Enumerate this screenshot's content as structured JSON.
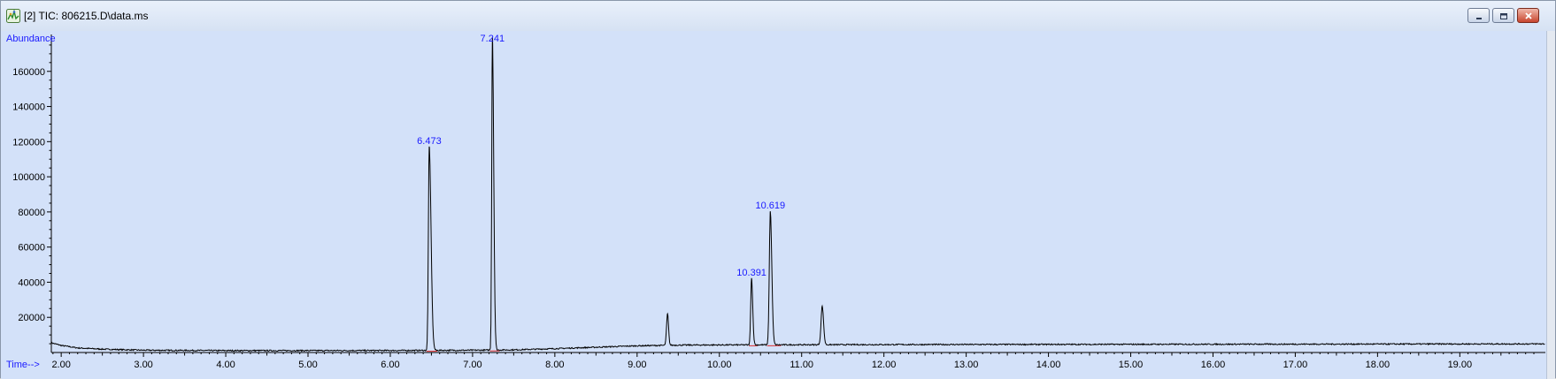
{
  "window": {
    "title": "[2] TIC: 806215.D\\data.ms",
    "buttons": {
      "minimize_icon": "minimize-icon",
      "restore_icon": "restore-icon",
      "close_icon": "close-icon"
    }
  },
  "chart_data": {
    "type": "line",
    "ylabel": "Abundance",
    "xlabel": "Time-->",
    "xlim": [
      1.88,
      20.04
    ],
    "ylim": [
      0,
      181000
    ],
    "x_ticks": [
      {
        "value": 2,
        "label": "2.00"
      },
      {
        "value": 3,
        "label": "3.00"
      },
      {
        "value": 4,
        "label": "4.00"
      },
      {
        "value": 5,
        "label": "5.00"
      },
      {
        "value": 6,
        "label": "6.00"
      },
      {
        "value": 7,
        "label": "7.00"
      },
      {
        "value": 8,
        "label": "8.00"
      },
      {
        "value": 9,
        "label": "9.00"
      },
      {
        "value": 10,
        "label": "10.00"
      },
      {
        "value": 11,
        "label": "11.00"
      },
      {
        "value": 12,
        "label": "12.00"
      },
      {
        "value": 13,
        "label": "13.00"
      },
      {
        "value": 14,
        "label": "14.00"
      },
      {
        "value": 15,
        "label": "15.00"
      },
      {
        "value": 16,
        "label": "16.00"
      },
      {
        "value": 17,
        "label": "17.00"
      },
      {
        "value": 18,
        "label": "18.00"
      },
      {
        "value": 19,
        "label": "19.00"
      }
    ],
    "y_ticks": [
      {
        "value": 20000,
        "label": "20000"
      },
      {
        "value": 40000,
        "label": "40000"
      },
      {
        "value": 60000,
        "label": "60000"
      },
      {
        "value": 80000,
        "label": "80000"
      },
      {
        "value": 100000,
        "label": "100000"
      },
      {
        "value": 120000,
        "label": "120000"
      },
      {
        "value": 140000,
        "label": "140000"
      },
      {
        "value": 160000,
        "label": "160000"
      }
    ],
    "baseline": [
      [
        1.88,
        5500
      ],
      [
        2.0,
        4000
      ],
      [
        2.2,
        2600
      ],
      [
        2.5,
        1900
      ],
      [
        3.0,
        1300
      ],
      [
        4.0,
        1100
      ],
      [
        5.0,
        1100
      ],
      [
        6.0,
        1150
      ],
      [
        6.4,
        1200
      ],
      [
        7.0,
        1300
      ],
      [
        7.5,
        1500
      ],
      [
        8.0,
        2200
      ],
      [
        8.5,
        3000
      ],
      [
        9.0,
        3800
      ],
      [
        9.5,
        4200
      ],
      [
        10.0,
        4300
      ],
      [
        11.0,
        4400
      ],
      [
        12.0,
        4500
      ],
      [
        14.0,
        4600
      ],
      [
        16.0,
        4700
      ],
      [
        18.0,
        4800
      ],
      [
        20.04,
        4900
      ]
    ],
    "peaks": [
      {
        "rt": 6.473,
        "height": 116000,
        "width": 0.01,
        "tail": 0.022,
        "label": "6.473"
      },
      {
        "rt": 7.241,
        "height": 178000,
        "width": 0.008,
        "tail": 0.016,
        "label": "7.241"
      },
      {
        "rt": 9.37,
        "height": 18000,
        "width": 0.012,
        "tail": 0.012,
        "label": ""
      },
      {
        "rt": 10.391,
        "height": 38000,
        "width": 0.01,
        "tail": 0.014,
        "label": "10.391"
      },
      {
        "rt": 10.619,
        "height": 76000,
        "width": 0.012,
        "tail": 0.018,
        "label": "10.619"
      },
      {
        "rt": 11.25,
        "height": 22000,
        "width": 0.014,
        "tail": 0.016,
        "label": ""
      }
    ],
    "integration_baselines": [
      [
        6.44,
        6.57
      ],
      [
        7.21,
        7.33
      ],
      [
        10.36,
        10.46
      ],
      [
        10.58,
        10.75
      ]
    ],
    "colors": {
      "trace": "#000000",
      "peak_labels": "#1a1aff",
      "axis_titles": "#1a1aff",
      "integration": "#e03030",
      "plot_background": "#d3e1f9"
    }
  }
}
